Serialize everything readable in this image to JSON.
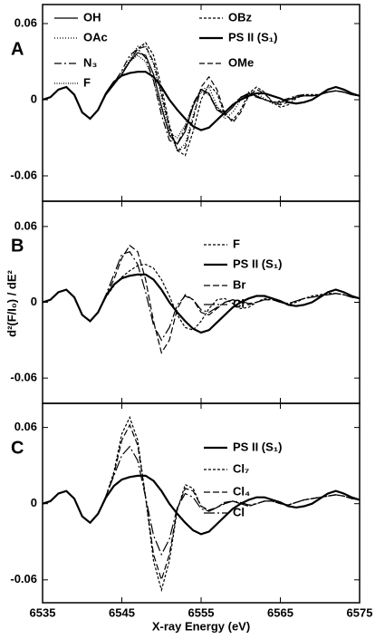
{
  "chart_data": [
    {
      "type": "line",
      "panel": "A",
      "xlim": [
        6535,
        6575
      ],
      "ylim": [
        -0.08,
        0.075
      ],
      "yticks": [
        0.06,
        0,
        -0.06
      ],
      "x": [
        6535,
        6536,
        6537,
        6538,
        6539,
        6540,
        6541,
        6542,
        6543,
        6544,
        6545,
        6546,
        6547,
        6548,
        6549,
        6550,
        6551,
        6552,
        6553,
        6554,
        6555,
        6556,
        6557,
        6558,
        6559,
        6560,
        6561,
        6562,
        6563,
        6564,
        6565,
        6566,
        6567,
        6568,
        6569,
        6570,
        6571,
        6572,
        6573,
        6574,
        6575
      ],
      "series": [
        {
          "name": "OH",
          "color": "#000",
          "dash": "none",
          "width": 1.2,
          "values": [
            0,
            0.002,
            0.008,
            0.01,
            0.004,
            -0.01,
            -0.015,
            -0.008,
            0.004,
            0.012,
            0.02,
            0.03,
            0.037,
            0.035,
            0.02,
            -0.005,
            -0.028,
            -0.035,
            -0.025,
            -0.005,
            0.008,
            0.005,
            -0.008,
            -0.012,
            -0.006,
            0.002,
            0.005,
            0.003,
            0,
            -0.002,
            -0.002,
            0,
            0.002,
            0.003,
            0.003,
            0.004,
            0.006,
            0.007,
            0.006,
            0.004,
            0.003
          ]
        },
        {
          "name": "OAc",
          "color": "#000",
          "dash": "1,2",
          "width": 1.3,
          "values": [
            0,
            0.002,
            0.008,
            0.01,
            0.004,
            -0.01,
            -0.015,
            -0.008,
            0.004,
            0.012,
            0.02,
            0.032,
            0.042,
            0.042,
            0.028,
            0.002,
            -0.025,
            -0.04,
            -0.035,
            -0.012,
            0.008,
            0.01,
            -0.005,
            -0.015,
            -0.01,
            0,
            0.006,
            0.005,
            0.001,
            -0.003,
            -0.003,
            0,
            0.003,
            0.004,
            0.003,
            0.004,
            0.006,
            0.007,
            0.006,
            0.004,
            0.003
          ]
        },
        {
          "name": "N₃",
          "color": "#000",
          "dash": "8,3,2,3",
          "width": 1.2,
          "values": [
            0,
            0.002,
            0.008,
            0.01,
            0.004,
            -0.01,
            -0.015,
            -0.008,
            0.004,
            0.013,
            0.023,
            0.035,
            0.04,
            0.033,
            0.015,
            -0.012,
            -0.032,
            -0.035,
            -0.022,
            -0.003,
            0.008,
            0.004,
            -0.008,
            -0.01,
            -0.004,
            0.002,
            0.004,
            0.002,
            0,
            -0.002,
            -0.001,
            0.001,
            0.003,
            0.004,
            0.003,
            0.004,
            0.006,
            0.007,
            0.006,
            0.004,
            0.003
          ]
        },
        {
          "name": "F",
          "color": "#000",
          "dash": "1,1.5",
          "width": 1.2,
          "values": [
            0,
            0.002,
            0.008,
            0.01,
            0.004,
            -0.01,
            -0.015,
            -0.008,
            0.004,
            0.013,
            0.022,
            0.03,
            0.035,
            0.03,
            0.015,
            -0.008,
            -0.026,
            -0.03,
            -0.02,
            -0.004,
            0.006,
            0.004,
            -0.006,
            -0.01,
            -0.005,
            0.001,
            0.004,
            0.003,
            0,
            -0.002,
            -0.002,
            0,
            0.002,
            0.003,
            0.003,
            0.004,
            0.006,
            0.007,
            0.006,
            0.004,
            0.003
          ]
        },
        {
          "name": "OBz",
          "color": "#000",
          "dash": "3,2",
          "width": 1.2,
          "values": [
            0,
            0.002,
            0.008,
            0.01,
            0.004,
            -0.01,
            -0.015,
            -0.008,
            0.004,
            0.012,
            0.02,
            0.03,
            0.04,
            0.045,
            0.035,
            0.01,
            -0.02,
            -0.04,
            -0.044,
            -0.025,
            0,
            0.012,
            0.005,
            -0.012,
            -0.016,
            -0.008,
            0.005,
            0.01,
            0.006,
            -0.002,
            -0.006,
            -0.004,
            0.001,
            0.004,
            0.004,
            0.004,
            0.006,
            0.007,
            0.006,
            0.004,
            0.003
          ]
        },
        {
          "name": "PS II (S₁)",
          "color": "#000",
          "dash": "none",
          "width": 2.2,
          "values": [
            0,
            0.002,
            0.008,
            0.01,
            0.004,
            -0.01,
            -0.015,
            -0.008,
            0.005,
            0.014,
            0.019,
            0.021,
            0.022,
            0.022,
            0.018,
            0.01,
            0,
            -0.008,
            -0.015,
            -0.021,
            -0.024,
            -0.022,
            -0.016,
            -0.01,
            -0.004,
            0,
            0.003,
            0.005,
            0.005,
            0.003,
            0.001,
            -0.002,
            -0.003,
            -0.002,
            0,
            0.004,
            0.008,
            0.01,
            0.008,
            0.005,
            0.003
          ]
        },
        {
          "name": "OMe",
          "color": "#000",
          "dash": "6,3",
          "width": 1.2,
          "values": [
            0,
            0.002,
            0.008,
            0.01,
            0.004,
            -0.01,
            -0.015,
            -0.008,
            0.004,
            0.012,
            0.02,
            0.03,
            0.04,
            0.042,
            0.03,
            0.005,
            -0.022,
            -0.04,
            -0.038,
            -0.015,
            0.01,
            0.018,
            0.008,
            -0.01,
            -0.018,
            -0.01,
            0.003,
            0.008,
            0.005,
            -0.002,
            -0.004,
            -0.002,
            0.002,
            0.004,
            0.003,
            0.004,
            0.006,
            0.007,
            0.006,
            0.004,
            0.003
          ]
        }
      ]
    },
    {
      "type": "line",
      "panel": "B",
      "ylabel": "d²(F/I₀) / dE²",
      "xlim": [
        6535,
        6575
      ],
      "ylim": [
        -0.08,
        0.08
      ],
      "yticks": [
        0.06,
        0,
        -0.06
      ],
      "x": [
        6535,
        6536,
        6537,
        6538,
        6539,
        6540,
        6541,
        6542,
        6543,
        6544,
        6545,
        6546,
        6547,
        6548,
        6549,
        6550,
        6551,
        6552,
        6553,
        6554,
        6555,
        6556,
        6557,
        6558,
        6559,
        6560,
        6561,
        6562,
        6563,
        6564,
        6565,
        6566,
        6567,
        6568,
        6569,
        6570,
        6571,
        6572,
        6573,
        6574,
        6575
      ],
      "series": [
        {
          "name": "F",
          "color": "#000",
          "dash": "3,2",
          "width": 1.2,
          "values": [
            0,
            0.002,
            0.008,
            0.01,
            0.004,
            -0.01,
            -0.015,
            -0.008,
            0.004,
            0.013,
            0.02,
            0.025,
            0.029,
            0.03,
            0.027,
            0.018,
            0.005,
            -0.01,
            -0.02,
            -0.022,
            -0.015,
            -0.005,
            0.002,
            0.003,
            -0.001,
            -0.005,
            -0.004,
            0,
            0.003,
            0.003,
            0,
            -0.002,
            0,
            0.003,
            0.005,
            0.006,
            0.007,
            0.007,
            0.006,
            0.004,
            0.003
          ]
        },
        {
          "name": "PS II (S₁)",
          "color": "#000",
          "dash": "none",
          "width": 2.2,
          "values": [
            0,
            0.002,
            0.008,
            0.01,
            0.004,
            -0.01,
            -0.015,
            -0.008,
            0.005,
            0.014,
            0.019,
            0.021,
            0.022,
            0.022,
            0.018,
            0.01,
            0,
            -0.008,
            -0.015,
            -0.021,
            -0.024,
            -0.022,
            -0.016,
            -0.01,
            -0.004,
            0,
            0.003,
            0.005,
            0.005,
            0.003,
            0.001,
            -0.002,
            -0.003,
            -0.002,
            0,
            0.004,
            0.008,
            0.01,
            0.008,
            0.005,
            0.003
          ]
        },
        {
          "name": "Br",
          "color": "#000",
          "dash": "7,3",
          "width": 1.2,
          "values": [
            0,
            0.002,
            0.008,
            0.01,
            0.004,
            -0.01,
            -0.015,
            -0.008,
            0.005,
            0.018,
            0.035,
            0.045,
            0.04,
            0.018,
            -0.015,
            -0.04,
            -0.03,
            -0.005,
            0.006,
            0.002,
            -0.008,
            -0.01,
            -0.005,
            0,
            0.002,
            0,
            -0.002,
            0,
            0.002,
            0.002,
            0,
            -0.001,
            0.001,
            0.003,
            0.004,
            0.005,
            0.006,
            0.007,
            0.006,
            0.004,
            0.003
          ]
        },
        {
          "name": "Cl",
          "color": "#000",
          "dash": "12,3,2,3",
          "width": 1.2,
          "values": [
            0,
            0.002,
            0.008,
            0.01,
            0.004,
            -0.01,
            -0.015,
            -0.008,
            0.006,
            0.022,
            0.038,
            0.04,
            0.03,
            0.008,
            -0.018,
            -0.03,
            -0.02,
            -0.002,
            0.005,
            0.002,
            -0.006,
            -0.008,
            -0.004,
            0,
            0.002,
            0.001,
            -0.001,
            0,
            0.002,
            0.002,
            0,
            -0.001,
            0.001,
            0.003,
            0.004,
            0.005,
            0.006,
            0.007,
            0.006,
            0.004,
            0.003
          ]
        }
      ]
    },
    {
      "type": "line",
      "panel": "C",
      "xlabel": "X-ray Energy (eV)",
      "xlim": [
        6535,
        6575
      ],
      "xticks": [
        6535,
        6545,
        6555,
        6565,
        6575
      ],
      "ylim": [
        -0.078,
        0.079
      ],
      "yticks": [
        0.06,
        0,
        -0.06
      ],
      "x": [
        6535,
        6536,
        6537,
        6538,
        6539,
        6540,
        6541,
        6542,
        6543,
        6544,
        6545,
        6546,
        6547,
        6548,
        6549,
        6550,
        6551,
        6552,
        6553,
        6554,
        6555,
        6556,
        6557,
        6558,
        6559,
        6560,
        6561,
        6562,
        6563,
        6564,
        6565,
        6566,
        6567,
        6568,
        6569,
        6570,
        6571,
        6572,
        6573,
        6574,
        6575
      ],
      "series": [
        {
          "name": "PS II (S₁)",
          "color": "#000",
          "dash": "none",
          "width": 2.2,
          "values": [
            0,
            0.002,
            0.008,
            0.01,
            0.004,
            -0.01,
            -0.015,
            -0.008,
            0.005,
            0.014,
            0.019,
            0.021,
            0.022,
            0.022,
            0.018,
            0.01,
            0,
            -0.008,
            -0.015,
            -0.021,
            -0.024,
            -0.022,
            -0.016,
            -0.01,
            -0.004,
            0,
            0.003,
            0.005,
            0.005,
            0.003,
            0.001,
            -0.002,
            -0.003,
            -0.002,
            0,
            0.004,
            0.008,
            0.01,
            0.008,
            0.005,
            0.003
          ]
        },
        {
          "name": "Cl₇",
          "color": "#000",
          "dash": "3,2",
          "width": 1.2,
          "values": [
            0,
            0.002,
            0.008,
            0.01,
            0.004,
            -0.01,
            -0.015,
            -0.008,
            0.006,
            0.025,
            0.055,
            0.068,
            0.05,
            0.005,
            -0.045,
            -0.068,
            -0.045,
            -0.005,
            0.015,
            0.012,
            -0.002,
            -0.006,
            -0.003,
            0.001,
            0.002,
            0,
            -0.002,
            0,
            0.002,
            0.002,
            0,
            -0.001,
            0.001,
            0.003,
            0.004,
            0.005,
            0.006,
            0.007,
            0.006,
            0.004,
            0.003
          ]
        },
        {
          "name": "Cl₄",
          "color": "#000",
          "dash": "7,3",
          "width": 1.2,
          "values": [
            0,
            0.002,
            0.008,
            0.01,
            0.004,
            -0.01,
            -0.015,
            -0.008,
            0.006,
            0.023,
            0.05,
            0.062,
            0.046,
            0.005,
            -0.04,
            -0.06,
            -0.04,
            -0.004,
            0.012,
            0.01,
            -0.002,
            -0.005,
            -0.003,
            0.001,
            0.002,
            0,
            -0.002,
            0,
            0.002,
            0.002,
            0,
            -0.001,
            0.001,
            0.003,
            0.004,
            0.005,
            0.006,
            0.007,
            0.006,
            0.004,
            0.003
          ]
        },
        {
          "name": "Cl",
          "color": "#000",
          "dash": "12,3,2,3",
          "width": 1.2,
          "values": [
            0,
            0.002,
            0.008,
            0.01,
            0.004,
            -0.01,
            -0.015,
            -0.008,
            0.006,
            0.022,
            0.038,
            0.045,
            0.034,
            0.005,
            -0.025,
            -0.04,
            -0.028,
            -0.003,
            0.008,
            0.005,
            -0.004,
            -0.006,
            -0.003,
            0,
            0.002,
            0.001,
            -0.001,
            0,
            0.002,
            0.002,
            0,
            -0.001,
            0.001,
            0.003,
            0.004,
            0.005,
            0.006,
            0.007,
            0.006,
            0.004,
            0.003
          ]
        }
      ]
    }
  ]
}
